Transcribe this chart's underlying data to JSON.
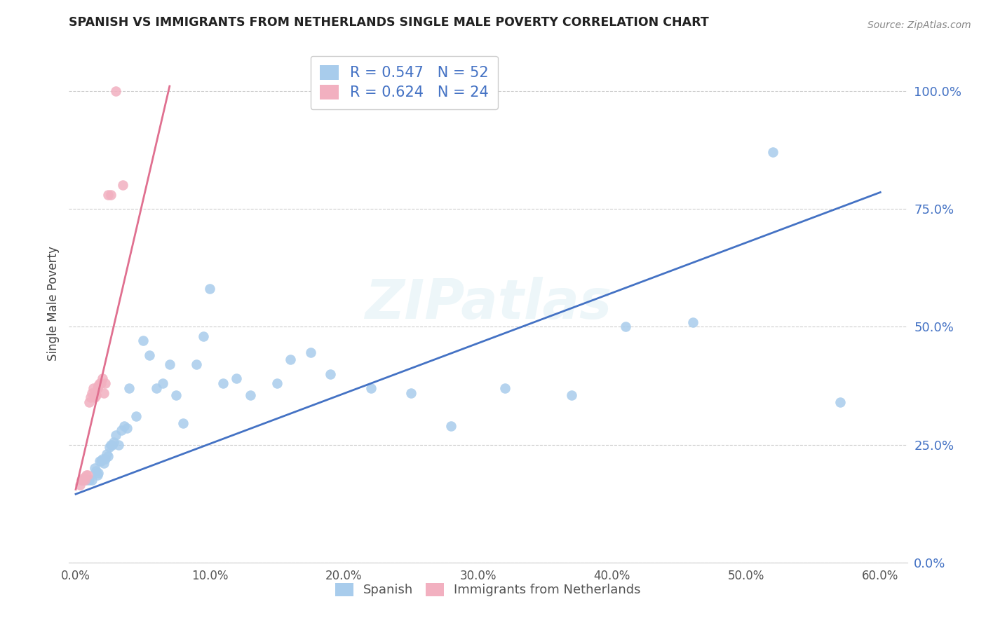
{
  "title": "SPANISH VS IMMIGRANTS FROM NETHERLANDS SINGLE MALE POVERTY CORRELATION CHART",
  "source": "Source: ZipAtlas.com",
  "ylabel": "Single Male Poverty",
  "legend1_label": "R = 0.547   N = 52",
  "legend2_label": "R = 0.624   N = 24",
  "blue_color": "#a8ccec",
  "pink_color": "#f2b0c0",
  "blue_line_color": "#4472c4",
  "pink_line_color": "#e07090",
  "watermark": "ZIPatlas",
  "blue_scatter_x": [
    0.005,
    0.008,
    0.01,
    0.012,
    0.014,
    0.015,
    0.016,
    0.017,
    0.018,
    0.019,
    0.02,
    0.021,
    0.022,
    0.023,
    0.024,
    0.025,
    0.026,
    0.027,
    0.028,
    0.03,
    0.032,
    0.034,
    0.036,
    0.038,
    0.04,
    0.045,
    0.05,
    0.055,
    0.06,
    0.065,
    0.07,
    0.075,
    0.08,
    0.09,
    0.095,
    0.1,
    0.11,
    0.12,
    0.13,
    0.15,
    0.16,
    0.175,
    0.19,
    0.22,
    0.25,
    0.28,
    0.32,
    0.37,
    0.41,
    0.46,
    0.52,
    0.57
  ],
  "blue_scatter_y": [
    0.175,
    0.175,
    0.175,
    0.175,
    0.2,
    0.195,
    0.185,
    0.19,
    0.215,
    0.215,
    0.22,
    0.21,
    0.22,
    0.23,
    0.225,
    0.245,
    0.25,
    0.25,
    0.255,
    0.27,
    0.25,
    0.28,
    0.29,
    0.285,
    0.37,
    0.31,
    0.47,
    0.44,
    0.37,
    0.38,
    0.42,
    0.355,
    0.295,
    0.42,
    0.48,
    0.58,
    0.38,
    0.39,
    0.355,
    0.38,
    0.43,
    0.445,
    0.4,
    0.37,
    0.36,
    0.29,
    0.37,
    0.355,
    0.5,
    0.51,
    0.87,
    0.34
  ],
  "pink_scatter_x": [
    0.003,
    0.004,
    0.005,
    0.006,
    0.007,
    0.008,
    0.009,
    0.01,
    0.011,
    0.012,
    0.013,
    0.014,
    0.015,
    0.016,
    0.017,
    0.018,
    0.019,
    0.02,
    0.021,
    0.022,
    0.024,
    0.026,
    0.03,
    0.035
  ],
  "pink_scatter_y": [
    0.165,
    0.175,
    0.175,
    0.18,
    0.175,
    0.185,
    0.185,
    0.34,
    0.35,
    0.36,
    0.37,
    0.35,
    0.355,
    0.37,
    0.375,
    0.38,
    0.38,
    0.39,
    0.36,
    0.38,
    0.78,
    0.78,
    1.0,
    0.8
  ],
  "blue_line_x": [
    0.0,
    0.6
  ],
  "blue_line_y": [
    0.145,
    0.785
  ],
  "pink_line_x": [
    0.0,
    0.07
  ],
  "pink_line_y": [
    0.155,
    1.01
  ],
  "xlim": [
    -0.005,
    0.62
  ],
  "ylim": [
    0.0,
    1.1
  ],
  "xtick_vals": [
    0.0,
    0.1,
    0.2,
    0.3,
    0.4,
    0.5,
    0.6
  ],
  "ytick_vals": [
    0.0,
    0.25,
    0.5,
    0.75,
    1.0
  ]
}
